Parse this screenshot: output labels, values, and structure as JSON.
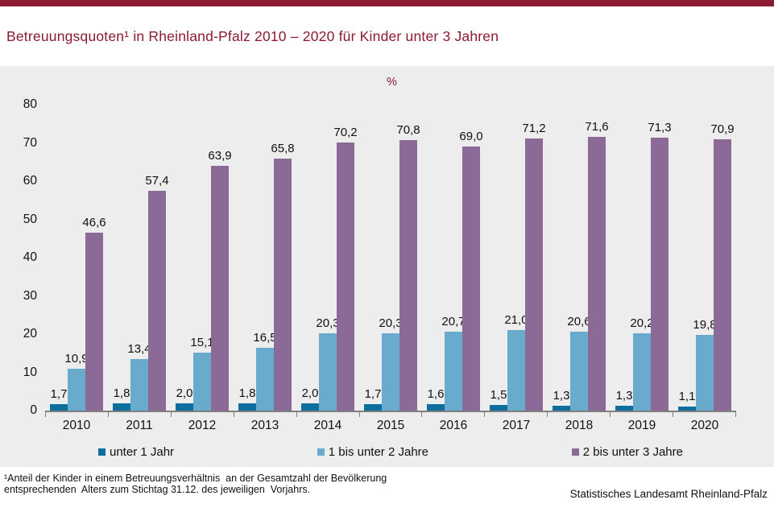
{
  "header": {
    "title": "Betreuungsquoten¹ in Rheinland-Pfalz 2010 – 2020 für Kinder unter 3 Jahren"
  },
  "chart_data": {
    "type": "bar",
    "title": "Betreuungsquoten in Rheinland-Pfalz 2010 – 2020 für Kinder unter 3 Jahren",
    "unit_label": "%",
    "categories": [
      "2010",
      "2011",
      "2012",
      "2013",
      "2014",
      "2015",
      "2016",
      "2017",
      "2018",
      "2019",
      "2020"
    ],
    "series": [
      {
        "name": "unter 1 Jahr",
        "color": "#0E6E9E",
        "values": [
          1.7,
          1.8,
          2.0,
          1.8,
          2.0,
          1.7,
          1.6,
          1.5,
          1.3,
          1.3,
          1.1
        ],
        "labels": [
          "1,7",
          "1,8",
          "2,0",
          "1,8",
          "2,0",
          "1,7",
          "1,6",
          "1,5",
          "1,3",
          "1,3",
          "1,1"
        ]
      },
      {
        "name": "1 bis unter 2 Jahre",
        "color": "#69ABCD",
        "values": [
          10.9,
          13.4,
          15.1,
          16.5,
          20.3,
          20.3,
          20.7,
          21.0,
          20.6,
          20.2,
          19.8
        ],
        "labels": [
          "10,9",
          "13,4",
          "15,1",
          "16,5",
          "20,3",
          "20,3",
          "20,7",
          "21,0",
          "20,6",
          "20,2",
          "19,8"
        ]
      },
      {
        "name": "2 bis unter 3 Jahre",
        "color": "#8B6A98",
        "values": [
          46.6,
          57.4,
          63.9,
          65.8,
          70.2,
          70.8,
          69.0,
          71.2,
          71.6,
          71.3,
          70.9
        ],
        "labels": [
          "46,6",
          "57,4",
          "63,9",
          "65,8",
          "70,2",
          "70,8",
          "69,0",
          "71,2",
          "71,6",
          "71,3",
          "70,9"
        ]
      }
    ],
    "y_axis": {
      "min": 0,
      "max": 80,
      "step": 10,
      "ticks": [
        "0",
        "10",
        "20",
        "30",
        "40",
        "50",
        "60",
        "70",
        "80"
      ]
    },
    "grid": false,
    "legend_position": "bottom"
  },
  "footer": {
    "footnote": "¹Anteil der Kinder in einem Betreuungsverhältnis  an der Gesamtzahl der Bevölkerung\nentsprechenden  Alters zum Stichtag 31.12. des jeweiligen  Vorjahrs.",
    "source": "Statistisches Landesamt Rheinland-Pfalz"
  },
  "colors": {
    "accent": "#8B1A33",
    "panel_background": "#EDEDED",
    "axis": "#7F7F7F",
    "series_unter_1_jahr": "#0E6E9E",
    "series_1_bis_unter_2_jahre": "#69ABCD",
    "series_2_bis_unter_3_jahre": "#8B6A98"
  }
}
